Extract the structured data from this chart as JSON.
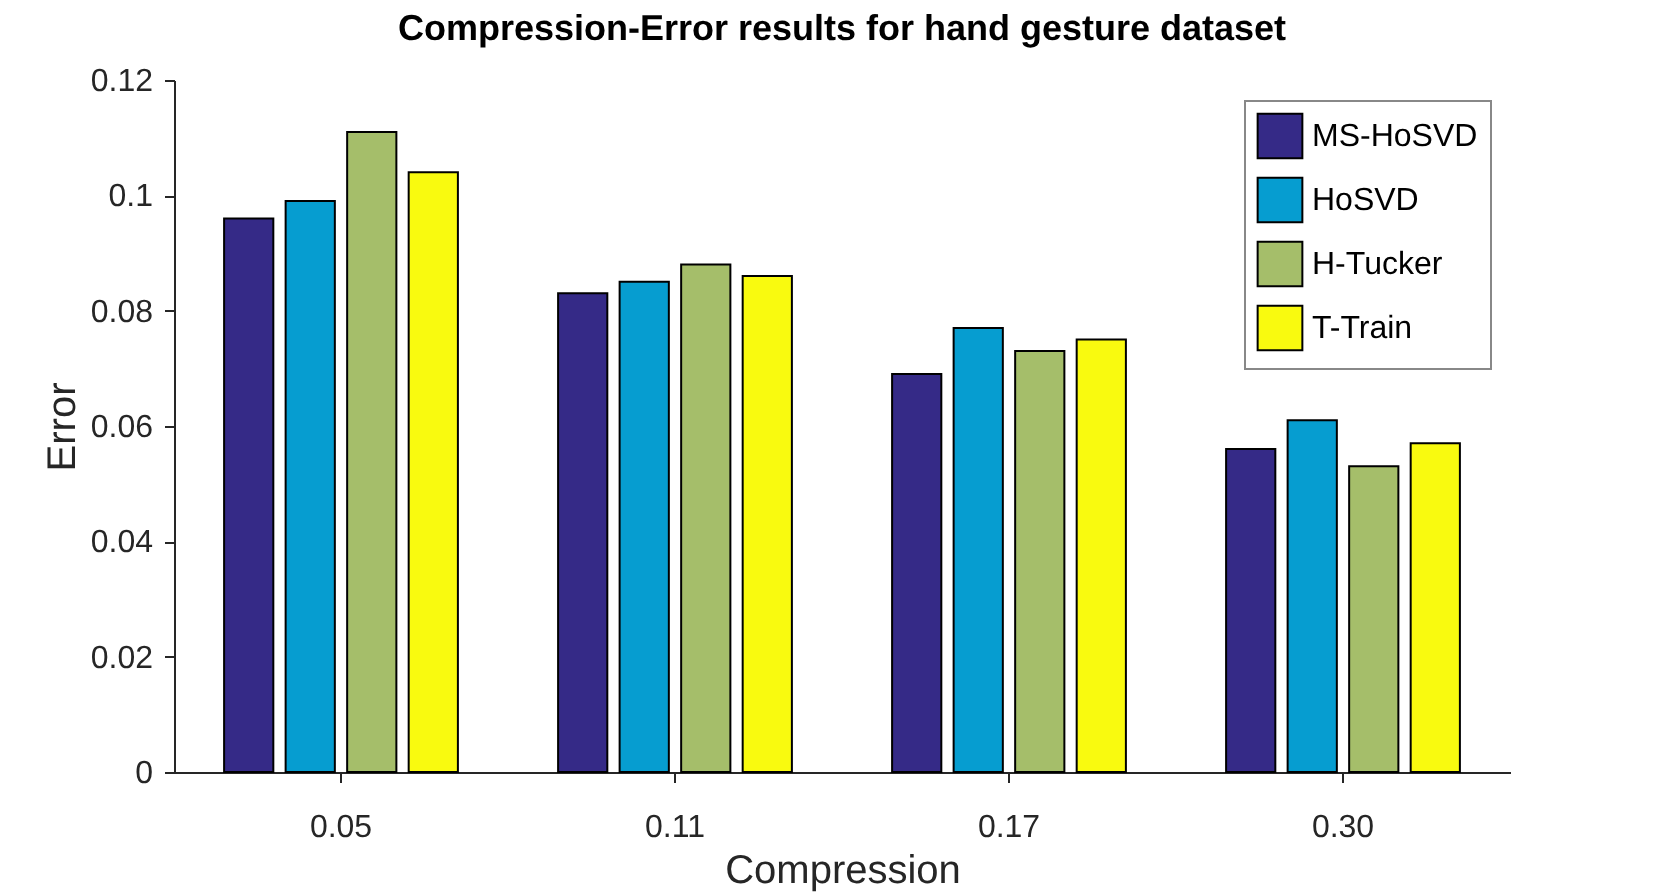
{
  "chart_data": {
    "type": "bar",
    "title": "Compression-Error results for hand gesture dataset",
    "xlabel": "Compression",
    "ylabel": "Error",
    "categories": [
      "0.05",
      "0.11",
      "0.17",
      "0.30"
    ],
    "series": [
      {
        "name": "MS-HoSVD",
        "color": "#352a87",
        "values": [
          0.096,
          0.083,
          0.069,
          0.056
        ]
      },
      {
        "name": "HoSVD",
        "color": "#069dd0",
        "values": [
          0.099,
          0.085,
          0.077,
          0.061
        ]
      },
      {
        "name": "H-Tucker",
        "color": "#a5be6a",
        "values": [
          0.111,
          0.088,
          0.073,
          0.053
        ]
      },
      {
        "name": "T-Train",
        "color": "#f9fa0f",
        "values": [
          0.104,
          0.086,
          0.075,
          0.057
        ]
      }
    ],
    "ylim": [
      0,
      0.12
    ],
    "yticks": [
      0,
      0.02,
      0.04,
      0.06,
      0.08,
      0.1,
      0.12
    ],
    "grid": false,
    "legend": "top right"
  }
}
